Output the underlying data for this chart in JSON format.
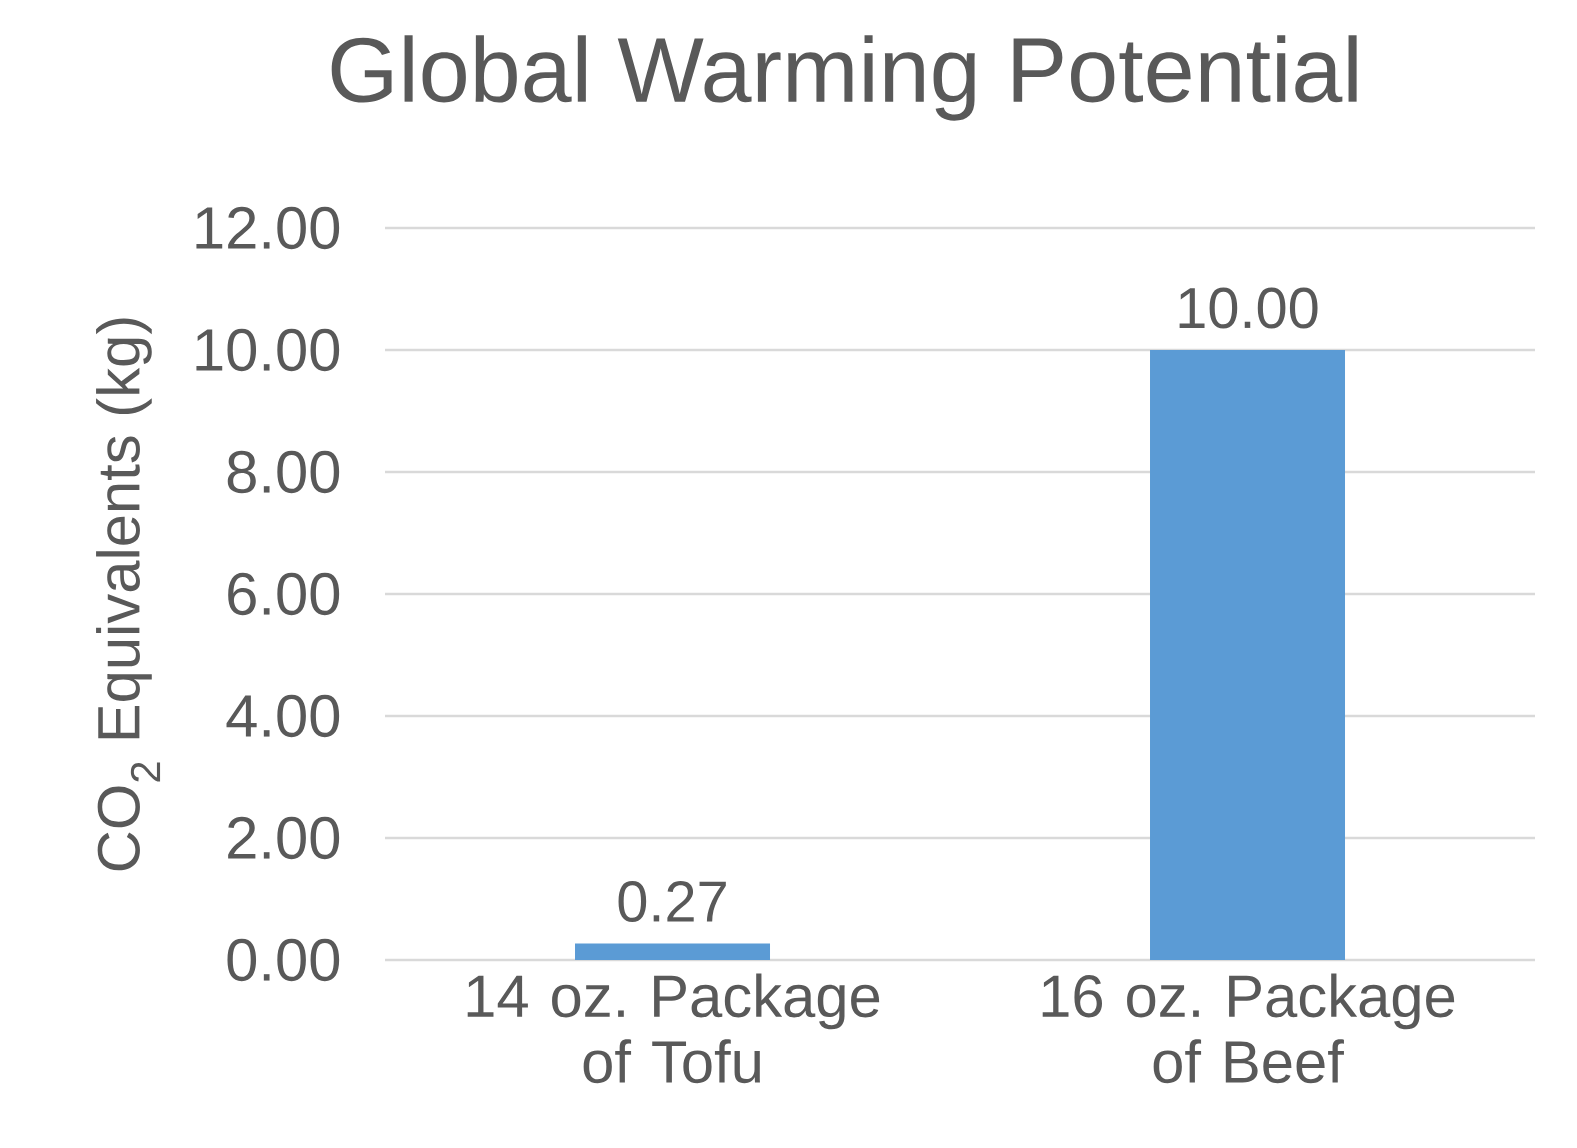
{
  "chart_data": {
    "type": "bar",
    "title": "Global Warming Potential",
    "ylabel": "CO$_{2}$ Equivalents (kg)",
    "categories": [
      "14 oz. Package of Tofu",
      "16 oz. Package of Beef"
    ],
    "values": [
      0.27,
      10.0
    ],
    "value_labels": [
      "0.27",
      "10.00"
    ],
    "color": "#5b9bd5",
    "ylim": [
      0,
      12
    ],
    "yticks": [
      {
        "value": 0,
        "label": "0.00"
      },
      {
        "value": 2,
        "label": "2.00"
      },
      {
        "value": 4,
        "label": "4.00"
      },
      {
        "value": 6,
        "label": "6.00"
      },
      {
        "value": 8,
        "label": "8.00"
      },
      {
        "value": 10,
        "label": "10.00"
      },
      {
        "value": 12,
        "label": "12.00"
      }
    ],
    "grid": "y"
  }
}
